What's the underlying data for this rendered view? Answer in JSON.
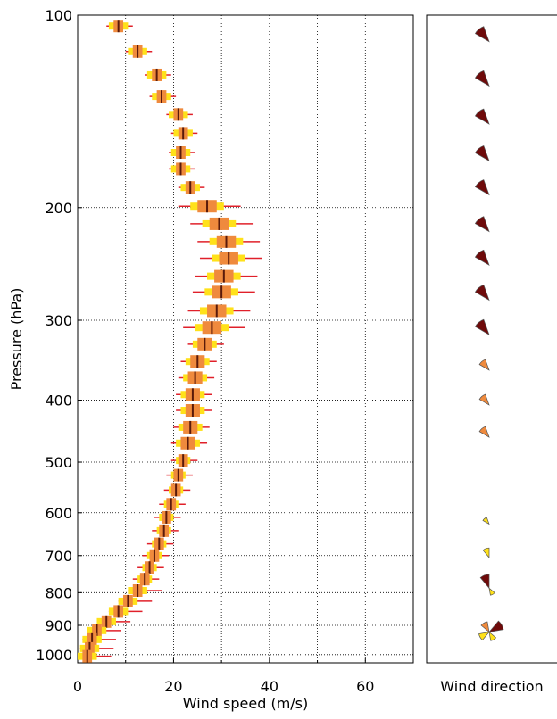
{
  "chart_data": [
    {
      "type": "boxprofile",
      "xlabel": "Wind speed (m/s)",
      "ylabel": "Pressure (hPa)",
      "xlim": [
        0,
        70
      ],
      "xticks": [
        0,
        20,
        40,
        60
      ],
      "xminor_ticks": [
        10,
        30,
        50
      ],
      "ylim": [
        100,
        1030
      ],
      "yticks": [
        100,
        200,
        300,
        400,
        500,
        600,
        700,
        800,
        900,
        1000
      ],
      "ylog": true,
      "yinverted": true,
      "grid": true,
      "whisker_color": "#e0202a",
      "outer_color": "#ffe11a",
      "box_color": "#ef8a3d",
      "median_color": "#5a1a0a",
      "levels": [
        104,
        114,
        124,
        134,
        143,
        153,
        164,
        174,
        186,
        199,
        212,
        226,
        240,
        256,
        271,
        290,
        308,
        327,
        348,
        369,
        392,
        415,
        441,
        467,
        497,
        524,
        553,
        582,
        610,
        640,
        671,
        700,
        731,
        762,
        794,
        825,
        856,
        888,
        917,
        947,
        978,
        1006
      ],
      "median": [
        8.5,
        12.5,
        16.5,
        17.5,
        21,
        22,
        21.5,
        21.5,
        23.5,
        27,
        29.5,
        31,
        31.5,
        30.5,
        30,
        29,
        28,
        26.5,
        25,
        24.5,
        24,
        24,
        23.5,
        23,
        22,
        21,
        20.5,
        19.5,
        18.5,
        18,
        17,
        16,
        15,
        14,
        12.5,
        10.5,
        8.5,
        6,
        4,
        3,
        2.5,
        2
      ],
      "q1": [
        7.5,
        11.5,
        15.5,
        16.5,
        20,
        21,
        20.5,
        20.5,
        22.5,
        25,
        27.5,
        29,
        29.5,
        28.5,
        28,
        27,
        26,
        25,
        23.5,
        23,
        22.5,
        22.5,
        22,
        21.5,
        21,
        20,
        19.5,
        18.5,
        17.5,
        17,
        16,
        15,
        14,
        13,
        11.5,
        9.5,
        7.5,
        5,
        3,
        2,
        1.5,
        1
      ],
      "q3": [
        9.5,
        13.5,
        17.5,
        18.5,
        22,
        23,
        22.5,
        22.5,
        24.5,
        29,
        31.5,
        33,
        33.5,
        32.5,
        32,
        31,
        30,
        28,
        26.5,
        26,
        25.5,
        25.5,
        25,
        24.5,
        23,
        22,
        21.5,
        20.5,
        19.5,
        19,
        18,
        17,
        16,
        15,
        13.5,
        11.5,
        9.5,
        7,
        5,
        4,
        3.5,
        3
      ],
      "p10": [
        6.5,
        10.5,
        14.5,
        15.5,
        19,
        20,
        19.5,
        19.5,
        21.5,
        23.5,
        26,
        27.5,
        28,
        27,
        26.5,
        25.5,
        24.5,
        24,
        22.5,
        22,
        21.5,
        21.5,
        21,
        20.5,
        20.5,
        19.5,
        19,
        18,
        17,
        16.5,
        15.5,
        14.5,
        13.5,
        12.5,
        10.5,
        8.5,
        6.5,
        4,
        2,
        1,
        0.5,
        0
      ],
      "p90": [
        10.5,
        14.5,
        18.5,
        19.5,
        23,
        24,
        23.5,
        23.5,
        25.5,
        30.5,
        33,
        34.5,
        35,
        34,
        33.5,
        32.5,
        31.5,
        29,
        27.5,
        27,
        26.5,
        26.5,
        26,
        25.5,
        23.5,
        22.5,
        22,
        21,
        20,
        19.5,
        18.5,
        17.5,
        16.5,
        15.5,
        14.5,
        12.5,
        10.5,
        8,
        6,
        5,
        4.5,
        4
      ],
      "min": [
        6,
        10,
        14,
        15,
        18.5,
        19.5,
        19,
        19,
        21,
        21,
        23.5,
        25,
        25.5,
        24.5,
        24,
        23,
        22,
        23,
        21.5,
        21,
        20.5,
        20.5,
        20,
        19.5,
        19.5,
        18.5,
        18,
        17,
        16,
        15.5,
        14.5,
        13.5,
        12.5,
        11.5,
        10.5,
        8.5,
        6.5,
        4,
        2,
        1,
        0.5,
        0
      ],
      "max": [
        11.5,
        15.5,
        19.5,
        20.5,
        24,
        25,
        24.5,
        24.5,
        26.5,
        34,
        36.5,
        38,
        38.5,
        37.5,
        37,
        36,
        35,
        30.5,
        29,
        28.5,
        28,
        28,
        27.5,
        27,
        25,
        24,
        23.5,
        22.5,
        21.5,
        21,
        20,
        19,
        18,
        17,
        17.5,
        15.5,
        13.5,
        11,
        9,
        8,
        7.5,
        7
      ]
    },
    {
      "type": "windrose",
      "xlabel": "Wind direction",
      "levels": [
        110,
        129,
        148,
        169,
        191,
        218,
        246,
        279,
        316,
        359,
        407,
        457,
        625,
        705,
        787,
        922
      ],
      "sectors": [
        [
          {
            "direction": 320,
            "frequency": 100,
            "color": "#6e0a0a"
          }
        ],
        [
          {
            "direction": 320,
            "frequency": 100,
            "color": "#6e0a0a"
          }
        ],
        [
          {
            "direction": 320,
            "frequency": 100,
            "color": "#6e0a0a"
          }
        ],
        [
          {
            "direction": 320,
            "frequency": 100,
            "color": "#6e0a0a"
          }
        ],
        [
          {
            "direction": 320,
            "frequency": 100,
            "color": "#6e0a0a"
          }
        ],
        [
          {
            "direction": 320,
            "frequency": 100,
            "color": "#6e0a0a"
          }
        ],
        [
          {
            "direction": 320,
            "frequency": 100,
            "color": "#6e0a0a"
          }
        ],
        [
          {
            "direction": 320,
            "frequency": 100,
            "color": "#6e0a0a"
          }
        ],
        [
          {
            "direction": 320,
            "frequency": 100,
            "color": "#6e0a0a"
          }
        ],
        [
          {
            "direction": 320,
            "frequency": 70,
            "color": "#ef8a3d"
          }
        ],
        [
          {
            "direction": 320,
            "frequency": 70,
            "color": "#ef8a3d"
          }
        ],
        [
          {
            "direction": 320,
            "frequency": 70,
            "color": "#ef8a3d"
          }
        ],
        [
          {
            "direction": 320,
            "frequency": 45,
            "color": "#ffe11a"
          }
        ],
        [
          {
            "direction": 340,
            "frequency": 60,
            "color": "#ffe11a"
          }
        ],
        [
          {
            "direction": 340,
            "frequency": 85,
            "color": "#6e0a0a"
          },
          {
            "direction": 150,
            "frequency": 45,
            "color": "#ffe11a"
          }
        ],
        [
          {
            "direction": 60,
            "frequency": 90,
            "color": "#6e0a0a"
          },
          {
            "direction": 330,
            "frequency": 65,
            "color": "#ef8a3d"
          },
          {
            "direction": 240,
            "frequency": 65,
            "color": "#ffe11a"
          },
          {
            "direction": 150,
            "frequency": 55,
            "color": "#ffe11a"
          }
        ]
      ]
    }
  ]
}
